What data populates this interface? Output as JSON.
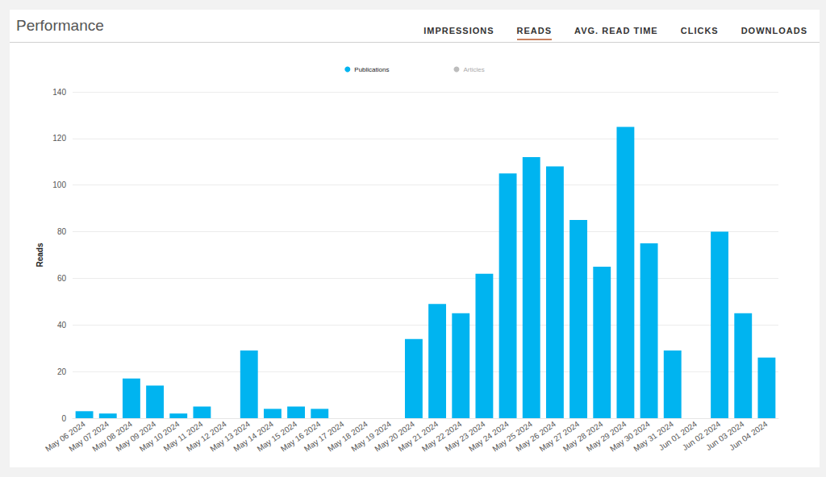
{
  "header": {
    "title": "Performance",
    "tabs": [
      "IMPRESSIONS",
      "READS",
      "AVG. READ TIME",
      "CLICKS",
      "DOWNLOADS"
    ],
    "active_tab": "READS"
  },
  "chart_data": {
    "type": "bar",
    "y_label": "Reads",
    "categories": [
      "May 06 2024",
      "May 07 2024",
      "May 08 2024",
      "May 09 2024",
      "May 10 2024",
      "May 11 2024",
      "May 12 2024",
      "May 13 2024",
      "May 14 2024",
      "May 15 2024",
      "May 16 2024",
      "May 17 2024",
      "May 18 2024",
      "May 19 2024",
      "May 20 2024",
      "May 21 2024",
      "May 22 2024",
      "May 23 2024",
      "May 24 2024",
      "May 25 2024",
      "May 26 2024",
      "May 27 2024",
      "May 28 2024",
      "May 29 2024",
      "May 30 2024",
      "May 31 2024",
      "Jun 01 2024",
      "Jun 02 2024",
      "Jun 03 2024",
      "Jun 04 2024"
    ],
    "series": [
      {
        "name": "Publications",
        "color": "#00b4f0",
        "values": [
          3,
          2,
          17,
          14,
          2,
          5,
          0,
          29,
          4,
          5,
          4,
          0,
          0,
          0,
          34,
          49,
          45,
          62,
          105,
          112,
          108,
          85,
          65,
          125,
          75,
          29,
          0,
          80,
          45,
          26
        ]
      },
      {
        "name": "Articles",
        "color": "#bdbdbd",
        "values": [
          null,
          null,
          null,
          null,
          null,
          null,
          null,
          null,
          null,
          null,
          null,
          null,
          null,
          null,
          null,
          null,
          null,
          null,
          null,
          null,
          null,
          null,
          null,
          null,
          null,
          null,
          null,
          null,
          null,
          null
        ]
      }
    ],
    "ylim": [
      0,
      140
    ],
    "yticks": [
      0,
      20,
      40,
      60,
      80,
      100,
      120,
      140
    ],
    "grid": true,
    "legend": "top"
  }
}
